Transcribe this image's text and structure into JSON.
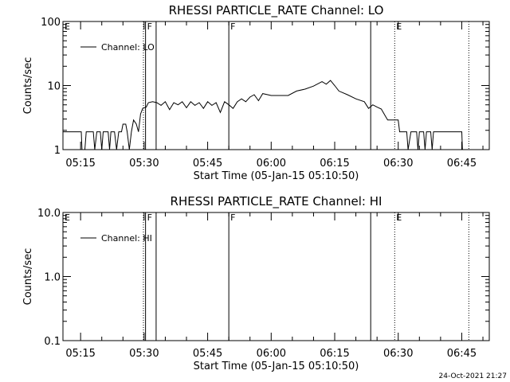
{
  "footer_timestamp": "24-Oct-2021 21:27",
  "chart_data": [
    {
      "type": "line",
      "title": "RHESSI PARTICLE_RATE Channel: LO",
      "xlabel": "Start Time (05-Jan-15 05:10:50)",
      "ylabel": "Counts/sec",
      "yscale": "log",
      "ylim": [
        1,
        100
      ],
      "yticks": [
        "1",
        "10",
        "100"
      ],
      "xlim": [
        "05:10:50",
        "06:51:30"
      ],
      "xticks": [
        "05:15",
        "05:30",
        "05:45",
        "06:00",
        "06:15",
        "06:30",
        "06:45"
      ],
      "legend": {
        "placement": "top-left",
        "entries": [
          "Channel: LO"
        ]
      },
      "series": [
        {
          "name": "Channel: LO",
          "points": [
            [
              "05:10:50",
              1.9
            ],
            [
              "05:15:10",
              1.9
            ],
            [
              "05:15:20",
              1.0
            ],
            [
              "05:16:00",
              1.0
            ],
            [
              "05:16:20",
              1.9
            ],
            [
              "05:18:00",
              1.9
            ],
            [
              "05:18:20",
              1.0
            ],
            [
              "05:18:50",
              1.9
            ],
            [
              "05:19:40",
              1.9
            ],
            [
              "05:20:00",
              1.0
            ],
            [
              "05:20:20",
              1.9
            ],
            [
              "05:21:30",
              1.9
            ],
            [
              "05:21:50",
              1.0
            ],
            [
              "05:22:10",
              1.9
            ],
            [
              "05:23:00",
              1.9
            ],
            [
              "05:23:30",
              1.0
            ],
            [
              "05:24:00",
              1.9
            ],
            [
              "05:24:40",
              1.9
            ],
            [
              "05:25:00",
              2.5
            ],
            [
              "05:25:40",
              2.5
            ],
            [
              "05:26:00",
              1.9
            ],
            [
              "05:26:30",
              1.0
            ],
            [
              "05:27:00",
              1.9
            ],
            [
              "05:27:30",
              2.9
            ],
            [
              "05:28:10",
              2.5
            ],
            [
              "05:28:40",
              1.9
            ],
            [
              "05:29:10",
              3.6
            ],
            [
              "05:29:40",
              4.4
            ],
            [
              "05:30:30",
              4.6
            ],
            [
              "05:31:00",
              5.4
            ],
            [
              "05:32:00",
              5.6
            ],
            [
              "05:33:00",
              5.4
            ],
            [
              "05:34:00",
              4.9
            ],
            [
              "05:35:00",
              5.6
            ],
            [
              "05:36:00",
              4.2
            ],
            [
              "05:37:00",
              5.4
            ],
            [
              "05:38:00",
              5.0
            ],
            [
              "05:39:00",
              5.6
            ],
            [
              "05:40:00",
              4.5
            ],
            [
              "05:41:00",
              5.6
            ],
            [
              "05:42:00",
              4.9
            ],
            [
              "05:43:00",
              5.4
            ],
            [
              "05:44:00",
              4.4
            ],
            [
              "05:45:00",
              5.6
            ],
            [
              "05:46:00",
              4.9
            ],
            [
              "05:47:00",
              5.4
            ],
            [
              "05:48:00",
              3.8
            ],
            [
              "05:49:00",
              5.6
            ],
            [
              "05:50:00",
              5.0
            ],
            [
              "05:51:00",
              4.4
            ],
            [
              "05:52:00",
              5.6
            ],
            [
              "05:53:00",
              6.2
            ],
            [
              "05:54:00",
              5.6
            ],
            [
              "05:55:00",
              6.6
            ],
            [
              "05:56:00",
              7.2
            ],
            [
              "05:57:00",
              5.8
            ],
            [
              "05:58:00",
              7.5
            ],
            [
              "06:00:00",
              7.0
            ],
            [
              "06:04:00",
              7.0
            ],
            [
              "06:06:00",
              8.2
            ],
            [
              "06:08:00",
              8.8
            ],
            [
              "06:10:00",
              9.8
            ],
            [
              "06:12:00",
              11.5
            ],
            [
              "06:13:00",
              10.5
            ],
            [
              "06:14:00",
              12.0
            ],
            [
              "06:15:00",
              10.0
            ],
            [
              "06:16:00",
              8.2
            ],
            [
              "06:18:00",
              7.2
            ],
            [
              "06:20:00",
              6.2
            ],
            [
              "06:22:00",
              5.6
            ],
            [
              "06:23:00",
              4.4
            ],
            [
              "06:24:00",
              5.0
            ],
            [
              "06:25:00",
              4.6
            ],
            [
              "06:26:00",
              4.3
            ],
            [
              "06:27:00",
              3.3
            ],
            [
              "06:27:30",
              2.9
            ],
            [
              "06:30:00",
              2.9
            ],
            [
              "06:30:20",
              1.9
            ],
            [
              "06:32:00",
              1.9
            ],
            [
              "06:32:20",
              1.0
            ],
            [
              "06:33:00",
              1.9
            ],
            [
              "06:34:20",
              1.9
            ],
            [
              "06:34:40",
              1.0
            ],
            [
              "06:35:00",
              1.9
            ],
            [
              "06:36:00",
              1.9
            ],
            [
              "06:36:20",
              1.0
            ],
            [
              "06:36:40",
              1.9
            ],
            [
              "06:37:40",
              1.9
            ],
            [
              "06:38:00",
              1.0
            ],
            [
              "06:38:20",
              1.9
            ],
            [
              "06:45:00",
              1.9
            ],
            [
              "06:45:10",
              1.0
            ]
          ]
        }
      ],
      "annotations": [
        {
          "time": "05:10:50",
          "label": "E",
          "style": "solid"
        },
        {
          "time": "05:29:50",
          "label": "",
          "style": "dotted"
        },
        {
          "time": "05:30:20",
          "label": "F",
          "style": "solid"
        },
        {
          "time": "05:32:50",
          "label": "",
          "style": "solid"
        },
        {
          "time": "05:50:00",
          "label": "F",
          "style": "solid"
        },
        {
          "time": "06:23:30",
          "label": "",
          "style": "solid"
        },
        {
          "time": "06:29:10",
          "label": "E",
          "style": "dotted"
        },
        {
          "time": "06:46:40",
          "label": "",
          "style": "dotted"
        }
      ]
    },
    {
      "type": "line",
      "title": "RHESSI PARTICLE_RATE Channel: HI",
      "xlabel": "Start Time (05-Jan-15 05:10:50)",
      "ylabel": "Counts/sec",
      "yscale": "log",
      "ylim": [
        0.1,
        10
      ],
      "yticks": [
        "0.1",
        "1.0",
        "10.0"
      ],
      "xlim": [
        "05:10:50",
        "06:51:30"
      ],
      "xticks": [
        "05:15",
        "05:30",
        "05:45",
        "06:00",
        "06:15",
        "06:30",
        "06:45"
      ],
      "legend": {
        "placement": "top-left",
        "entries": [
          "Channel: HI"
        ]
      },
      "series": [
        {
          "name": "Channel: HI",
          "points": []
        }
      ],
      "annotations": [
        {
          "time": "05:10:50",
          "label": "E",
          "style": "solid"
        },
        {
          "time": "05:29:50",
          "label": "",
          "style": "dotted"
        },
        {
          "time": "05:30:20",
          "label": "F",
          "style": "solid"
        },
        {
          "time": "05:32:50",
          "label": "",
          "style": "solid"
        },
        {
          "time": "05:50:00",
          "label": "F",
          "style": "solid"
        },
        {
          "time": "06:23:30",
          "label": "",
          "style": "solid"
        },
        {
          "time": "06:29:10",
          "label": "E",
          "style": "dotted"
        },
        {
          "time": "06:46:40",
          "label": "",
          "style": "dotted"
        }
      ]
    }
  ]
}
